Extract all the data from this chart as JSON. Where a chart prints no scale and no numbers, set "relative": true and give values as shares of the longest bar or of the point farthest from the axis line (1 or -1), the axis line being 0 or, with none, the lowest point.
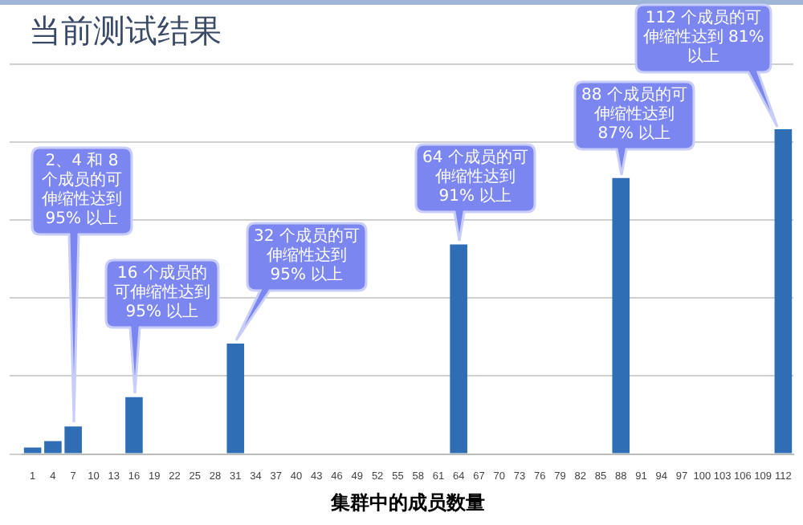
{
  "chart_data": {
    "type": "bar",
    "title": "当前测试结果",
    "xlabel": "集群中的成员数量",
    "categories": [
      "1",
      "4",
      "7",
      "10",
      "13",
      "16",
      "19",
      "22",
      "25",
      "28",
      "31",
      "34",
      "37",
      "40",
      "43",
      "46",
      "49",
      "52",
      "55",
      "58",
      "61",
      "64",
      "67",
      "70",
      "73",
      "76",
      "79",
      "82",
      "85",
      "88",
      "91",
      "94",
      "97",
      "100",
      "103",
      "106",
      "109",
      "112"
    ],
    "values": [
      0.02,
      0.04,
      0.085,
      null,
      null,
      0.175,
      null,
      null,
      null,
      null,
      0.34,
      null,
      null,
      null,
      null,
      null,
      null,
      null,
      null,
      null,
      null,
      0.645,
      null,
      null,
      null,
      null,
      null,
      null,
      null,
      0.85,
      null,
      null,
      null,
      null,
      null,
      null,
      null,
      1
    ],
    "color": "#2f6eb5",
    "relative": true,
    "grid": "y",
    "legend": false,
    "annotations": [
      "2、4 和 8 个成员的可伸缩性达到 95% 以上",
      "16 个成员的可伸缩性达到 95% 以上",
      "32 个成员的可伸缩性达到 95% 以上",
      "64 个成员的可伸缩性达到 91% 以上",
      "88 个成员的可伸缩性达到 87% 以上",
      "112 个成员的可伸缩性达到 81% 以上"
    ]
  }
}
